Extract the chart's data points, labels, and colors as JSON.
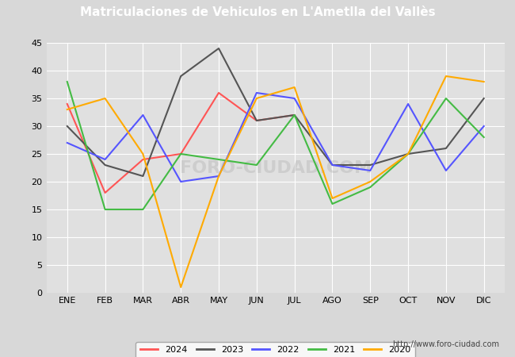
{
  "title": "Matriculaciones de Vehiculos en L'Ametlla del Vallès",
  "title_bg_color": "#4472c4",
  "title_text_color": "#ffffff",
  "months": [
    "ENE",
    "FEB",
    "MAR",
    "ABR",
    "MAY",
    "JUN",
    "JUL",
    "AGO",
    "SEP",
    "OCT",
    "NOV",
    "DIC"
  ],
  "series": {
    "2024": {
      "color": "#ff5555",
      "data": [
        34,
        18,
        24,
        25,
        36,
        31,
        32,
        null,
        null,
        null,
        null,
        null
      ]
    },
    "2023": {
      "color": "#555555",
      "data": [
        30,
        23,
        21,
        39,
        44,
        31,
        32,
        23,
        23,
        25,
        26,
        35
      ]
    },
    "2022": {
      "color": "#5555ff",
      "data": [
        27,
        24,
        32,
        20,
        21,
        36,
        35,
        23,
        22,
        34,
        22,
        30
      ]
    },
    "2021": {
      "color": "#44bb44",
      "data": [
        38,
        15,
        15,
        25,
        24,
        23,
        32,
        16,
        19,
        25,
        35,
        28
      ]
    },
    "2020": {
      "color": "#ffaa00",
      "data": [
        33,
        35,
        25,
        1,
        21,
        35,
        37,
        17,
        20,
        25,
        39,
        38
      ]
    }
  },
  "ylim": [
    0,
    45
  ],
  "yticks": [
    0,
    5,
    10,
    15,
    20,
    25,
    30,
    35,
    40,
    45
  ],
  "bg_color": "#d8d8d8",
  "plot_bg_color": "#e0e0e0",
  "grid_color": "#ffffff",
  "watermark": "FORO-CIUDAD.COM",
  "url": "http://www.foro-ciudad.com",
  "legend_years": [
    "2024",
    "2023",
    "2022",
    "2021",
    "2020"
  ],
  "linewidth": 1.5
}
